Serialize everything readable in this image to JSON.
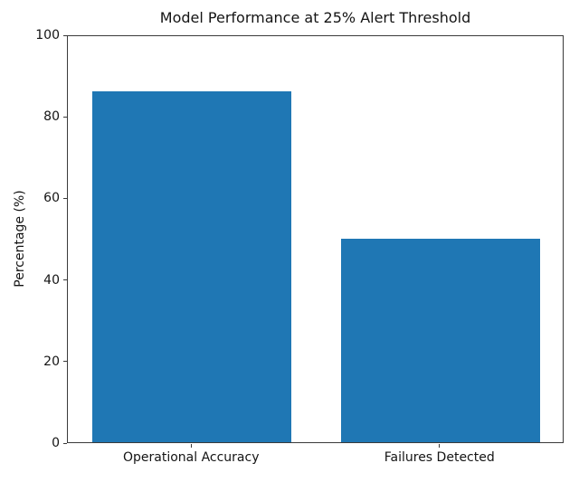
{
  "chart_data": {
    "type": "bar",
    "title": "Model Performance at 25% Alert Threshold",
    "categories": [
      "Operational Accuracy",
      "Failures Detected"
    ],
    "values": [
      86,
      50
    ],
    "xlabel": "",
    "ylabel": "Percentage (%)",
    "ylim": [
      0,
      100
    ],
    "yticks": [
      0,
      20,
      40,
      60,
      80,
      100
    ],
    "bar_color": "#1f77b4",
    "bar_width_fraction": 0.8,
    "background": "#ffffff",
    "grid": false,
    "legend": "none"
  }
}
